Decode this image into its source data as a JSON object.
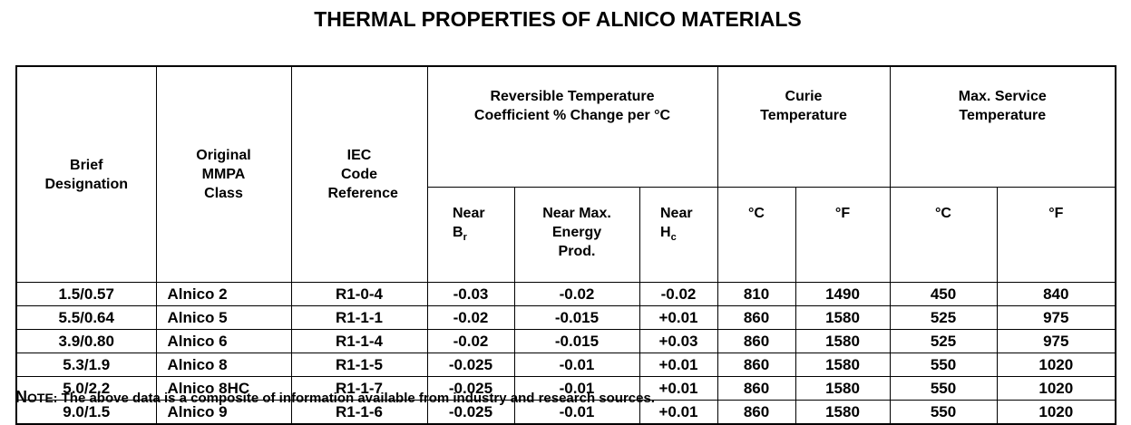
{
  "title": "THERMAL PROPERTIES OF ALNICO MATERIALS",
  "table": {
    "headers": [
      "Brief Designation",
      "Original MMPA Class",
      "IEC Code Reference",
      "Reversible Temperature Coefficient % Change per °C",
      "Curie Temperature",
      "Max. Service Temperature"
    ],
    "subheaders": [
      {
        "text": "Near B",
        "sub": "r"
      },
      {
        "text": "Near Max. Energy Prod."
      },
      {
        "text": "Near H",
        "sub": "c"
      },
      {
        "text": "°C"
      },
      {
        "text": "°F"
      },
      {
        "text": "°C"
      },
      {
        "text": "°F"
      }
    ],
    "rows": [
      [
        "1.5/0.57",
        "Alnico 2",
        "R1-0-4",
        "-0.03",
        "-0.02",
        "-0.02",
        "810",
        "1490",
        "450",
        "840"
      ],
      [
        "5.5/0.64",
        "Alnico 5",
        "R1-1-1",
        "-0.02",
        "-0.015",
        "+0.01",
        "860",
        "1580",
        "525",
        "975"
      ],
      [
        "3.9/0.80",
        "Alnico 6",
        "R1-1-4",
        "-0.02",
        "-0.015",
        "+0.03",
        "860",
        "1580",
        "525",
        "975"
      ],
      [
        "5.3/1.9",
        "Alnico 8",
        "R1-1-5",
        "-0.025",
        "-0.01",
        "+0.01",
        "860",
        "1580",
        "550",
        "1020"
      ],
      [
        "5.0/2.2",
        "Alnico 8HC",
        "R1-1-7",
        "-0.025",
        "-0.01",
        "+0.01",
        "860",
        "1580",
        "550",
        "1020"
      ],
      [
        "9.0/1.5",
        "Alnico 9",
        "R1-1-6",
        "-0.025",
        "-0.01",
        "+0.01",
        "860",
        "1580",
        "550",
        "1020"
      ]
    ]
  },
  "note": {
    "label": "NOTE:",
    "text": "The above data is a composite of information available from industry and research sources."
  }
}
